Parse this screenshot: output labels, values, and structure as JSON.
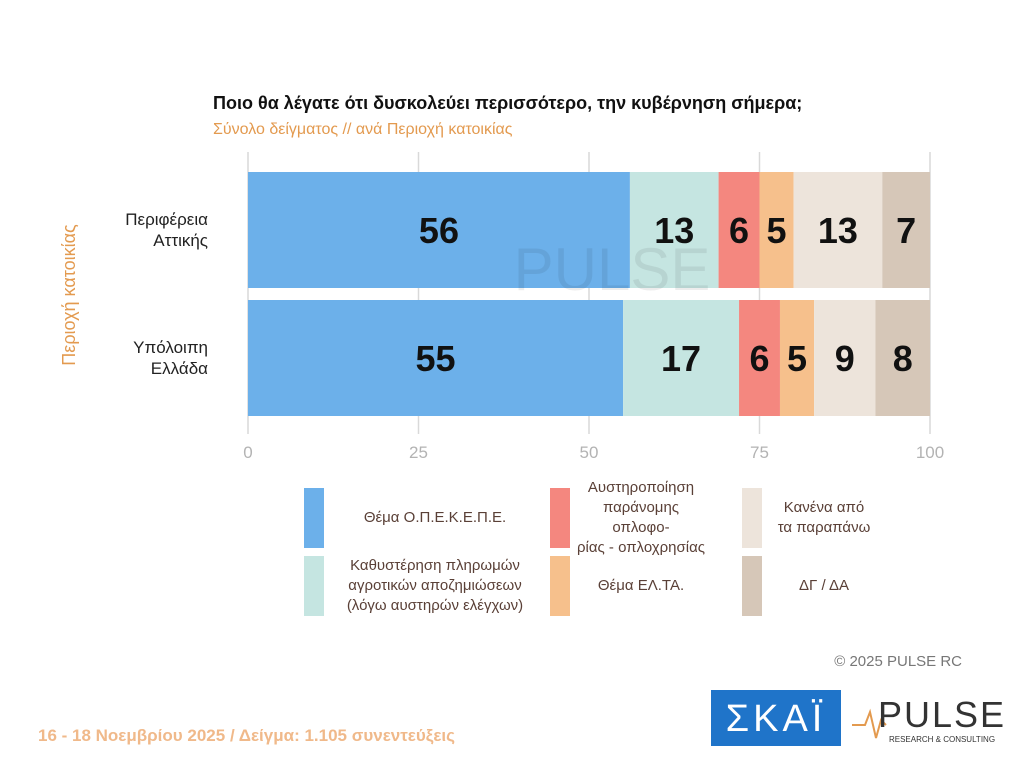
{
  "chart_data": {
    "type": "stacked-bar-horizontal",
    "title": "Ποιο θα λέγατε ότι δυσκολεύει περισσότερο, την κυβέρνηση σήμερα;",
    "subtitle": "Σύνολο δείγματος // ανά Περιοχή κατοικίας",
    "y_label": "Περιοχή κατοικίας",
    "categories": [
      "Περιφέρεια\nΑττικής",
      "Υπόλοιπη\nΕλλάδα"
    ],
    "series": [
      {
        "name": "Θέμα Ο.Π.Ε.Κ.Ε.Π.Ε.",
        "color": "#6cb0ea",
        "values": [
          56,
          55
        ]
      },
      {
        "name": "Καθυστέρηση πληρωμών\nαγροτικών αποζημιώσεων\n(λόγω αυστηρών ελέγχων)",
        "color": "#c5e5e1",
        "values": [
          13,
          17
        ]
      },
      {
        "name": "Αυστηροποίηση\nπαράνομης οπλοφο-\nρίας - οπλοχρησίας",
        "color": "#f4877f",
        "values": [
          6,
          6
        ]
      },
      {
        "name": "Θέμα ΕΛ.ΤΑ.",
        "color": "#f6c08c",
        "values": [
          5,
          5
        ]
      },
      {
        "name": "Κανένα από\nτα παραπάνω",
        "color": "#ede4db",
        "values": [
          13,
          9
        ]
      },
      {
        "name": "ΔΓ / ΔΑ",
        "color": "#d6c7b8",
        "values": [
          7,
          8
        ]
      }
    ],
    "xlim": [
      0,
      100
    ],
    "xticks": [
      0,
      25,
      50,
      75,
      100
    ],
    "grid": true,
    "watermark": "PULSE",
    "copyright": "©  2025  PULSE RC",
    "footnote": "16 - 18 Νοεμβρίου 2025  /  Δείγμα:  1.105 συνεντεύξεις",
    "logo_left": "ΣΚΑΪ",
    "logo_right": "PULSE",
    "logo_right_sub": "RESEARCH & CONSULTING"
  }
}
